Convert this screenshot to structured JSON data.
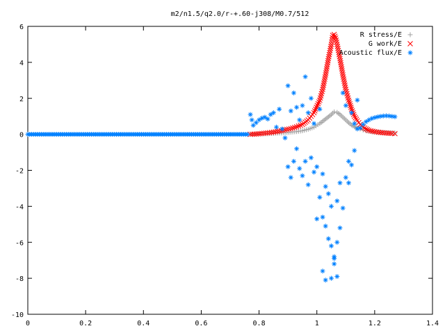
{
  "chart_data": {
    "type": "scatter",
    "title": "m2/n1.5/q2.0/r-+.60-j308/M0.7/512",
    "xlabel": "",
    "ylabel": "",
    "xlim": [
      0,
      1.4
    ],
    "ylim": [
      -10,
      6
    ],
    "x_ticks": [
      0,
      0.2,
      0.4,
      0.6,
      0.8,
      1,
      1.2,
      1.4
    ],
    "x_tick_labels": [
      "0",
      "0.2",
      "0.4",
      "0.6",
      "0.8",
      "1",
      "1.2",
      "1.4"
    ],
    "y_ticks": [
      -10,
      -8,
      -6,
      -4,
      -2,
      0,
      2,
      4,
      6
    ],
    "y_tick_labels": [
      "-10",
      "-8",
      "-6",
      "-4",
      "-2",
      "0",
      "2",
      "4",
      "6"
    ],
    "grid": false,
    "legend_position": "top-right",
    "series": [
      {
        "name": "R stress/E",
        "marker": "plus",
        "color": "#a0a0a0",
        "points": [
          [
            0.77,
            0.0
          ],
          [
            0.79,
            0.01
          ],
          [
            0.81,
            0.02
          ],
          [
            0.83,
            0.03
          ],
          [
            0.85,
            0.05
          ],
          [
            0.87,
            0.07
          ],
          [
            0.89,
            0.09
          ],
          [
            0.91,
            0.12
          ],
          [
            0.93,
            0.15
          ],
          [
            0.95,
            0.2
          ],
          [
            0.97,
            0.28
          ],
          [
            0.99,
            0.4
          ],
          [
            1.01,
            0.6
          ],
          [
            1.03,
            0.85
          ],
          [
            1.05,
            1.1
          ],
          [
            1.06,
            1.25
          ],
          [
            1.07,
            1.22
          ],
          [
            1.08,
            1.1
          ],
          [
            1.09,
            0.95
          ],
          [
            1.1,
            0.8
          ],
          [
            1.11,
            0.65
          ],
          [
            1.12,
            0.52
          ],
          [
            1.13,
            0.42
          ],
          [
            1.14,
            0.35
          ],
          [
            1.15,
            0.3
          ],
          [
            1.16,
            0.24
          ],
          [
            1.17,
            0.2
          ],
          [
            1.19,
            0.15
          ],
          [
            1.21,
            0.12
          ],
          [
            1.23,
            0.1
          ],
          [
            1.25,
            0.08
          ],
          [
            1.27,
            0.07
          ]
        ]
      },
      {
        "name": "G work/E",
        "marker": "cross",
        "color": "#ff0000",
        "points": [
          [
            0.77,
            0.0
          ],
          [
            0.79,
            0.02
          ],
          [
            0.81,
            0.05
          ],
          [
            0.83,
            0.08
          ],
          [
            0.85,
            0.12
          ],
          [
            0.87,
            0.18
          ],
          [
            0.89,
            0.25
          ],
          [
            0.91,
            0.32
          ],
          [
            0.93,
            0.42
          ],
          [
            0.95,
            0.55
          ],
          [
            0.97,
            0.8
          ],
          [
            0.99,
            1.2
          ],
          [
            1.01,
            1.9
          ],
          [
            1.02,
            2.5
          ],
          [
            1.03,
            3.3
          ],
          [
            1.04,
            4.2
          ],
          [
            1.05,
            5.0
          ],
          [
            1.055,
            5.5
          ],
          [
            1.06,
            5.55
          ],
          [
            1.065,
            5.35
          ],
          [
            1.07,
            5.0
          ],
          [
            1.08,
            4.2
          ],
          [
            1.09,
            3.3
          ],
          [
            1.1,
            2.5
          ],
          [
            1.11,
            1.9
          ],
          [
            1.12,
            1.4
          ],
          [
            1.13,
            1.0
          ],
          [
            1.14,
            0.75
          ],
          [
            1.15,
            0.55
          ],
          [
            1.16,
            0.4
          ],
          [
            1.17,
            0.3
          ],
          [
            1.18,
            0.22
          ],
          [
            1.2,
            0.15
          ],
          [
            1.22,
            0.1
          ],
          [
            1.24,
            0.07
          ],
          [
            1.26,
            0.05
          ],
          [
            1.27,
            0.04
          ]
        ]
      },
      {
        "name": "Acoustic flux/E",
        "marker": "star",
        "color": "#0080ff",
        "points": [
          [
            0.0,
            0.0
          ],
          [
            0.02,
            0.0
          ],
          [
            0.04,
            0.0
          ],
          [
            0.06,
            0.0
          ],
          [
            0.08,
            0.0
          ],
          [
            0.1,
            0.0
          ],
          [
            0.12,
            0.0
          ],
          [
            0.14,
            0.0
          ],
          [
            0.16,
            0.0
          ],
          [
            0.18,
            0.0
          ],
          [
            0.2,
            0.0
          ],
          [
            0.22,
            0.0
          ],
          [
            0.24,
            0.0
          ],
          [
            0.26,
            0.0
          ],
          [
            0.28,
            0.0
          ],
          [
            0.3,
            0.0
          ],
          [
            0.32,
            0.0
          ],
          [
            0.34,
            0.0
          ],
          [
            0.36,
            0.0
          ],
          [
            0.38,
            0.0
          ],
          [
            0.4,
            0.0
          ],
          [
            0.42,
            0.0
          ],
          [
            0.44,
            0.0
          ],
          [
            0.46,
            0.0
          ],
          [
            0.48,
            0.0
          ],
          [
            0.5,
            0.0
          ],
          [
            0.52,
            0.0
          ],
          [
            0.54,
            0.0
          ],
          [
            0.56,
            0.0
          ],
          [
            0.58,
            0.0
          ],
          [
            0.6,
            0.0
          ],
          [
            0.62,
            0.0
          ],
          [
            0.64,
            0.0
          ],
          [
            0.66,
            0.0
          ],
          [
            0.68,
            0.0
          ],
          [
            0.7,
            0.0
          ],
          [
            0.72,
            0.0
          ],
          [
            0.74,
            0.0
          ],
          [
            0.76,
            0.0
          ],
          [
            0.77,
            1.1
          ],
          [
            0.775,
            0.8
          ],
          [
            0.78,
            0.5
          ],
          [
            0.79,
            0.65
          ],
          [
            0.8,
            0.8
          ],
          [
            0.81,
            0.9
          ],
          [
            0.82,
            0.95
          ],
          [
            0.83,
            0.85
          ],
          [
            0.84,
            1.1
          ],
          [
            0.85,
            1.2
          ],
          [
            0.86,
            0.4
          ],
          [
            0.87,
            1.4
          ],
          [
            0.88,
            0.3
          ],
          [
            0.89,
            -0.2
          ],
          [
            0.9,
            2.7
          ],
          [
            0.9,
            -1.8
          ],
          [
            0.91,
            1.3
          ],
          [
            0.91,
            -2.4
          ],
          [
            0.92,
            2.3
          ],
          [
            0.92,
            -1.5
          ],
          [
            0.93,
            -0.8
          ],
          [
            0.93,
            1.5
          ],
          [
            0.94,
            -1.9
          ],
          [
            0.94,
            0.8
          ],
          [
            0.95,
            -2.3
          ],
          [
            0.95,
            1.6
          ],
          [
            0.96,
            -1.5
          ],
          [
            0.96,
            3.2
          ],
          [
            0.97,
            -2.8
          ],
          [
            0.97,
            1.2
          ],
          [
            0.98,
            -1.3
          ],
          [
            0.98,
            2.0
          ],
          [
            0.99,
            -2.1
          ],
          [
            0.99,
            0.6
          ],
          [
            1.0,
            -4.7
          ],
          [
            1.0,
            -1.8
          ],
          [
            1.01,
            -3.5
          ],
          [
            1.01,
            1.4
          ],
          [
            1.02,
            -2.2
          ],
          [
            1.02,
            -4.6
          ],
          [
            1.03,
            -5.1
          ],
          [
            1.03,
            -2.9
          ],
          [
            1.04,
            -5.8
          ],
          [
            1.04,
            -3.3
          ],
          [
            1.05,
            -6.2
          ],
          [
            1.05,
            -4.0
          ],
          [
            1.06,
            -6.8
          ],
          [
            1.06,
            -7.2
          ],
          [
            1.07,
            -6.0
          ],
          [
            1.07,
            -3.7
          ],
          [
            1.08,
            -5.2
          ],
          [
            1.08,
            -2.7
          ],
          [
            1.09,
            -4.1
          ],
          [
            1.09,
            2.3
          ],
          [
            1.1,
            -2.4
          ],
          [
            1.1,
            1.6
          ],
          [
            1.11,
            -1.5
          ],
          [
            1.11,
            -2.7
          ],
          [
            1.12,
            1.2
          ],
          [
            1.12,
            -1.7
          ],
          [
            1.13,
            0.6
          ],
          [
            1.13,
            -0.9
          ],
          [
            1.14,
            1.9
          ],
          [
            1.14,
            0.3
          ],
          [
            1.15,
            0.35
          ],
          [
            1.16,
            0.55
          ],
          [
            1.17,
            0.7
          ],
          [
            1.18,
            0.8
          ],
          [
            1.19,
            0.88
          ],
          [
            1.2,
            0.93
          ],
          [
            1.21,
            0.97
          ],
          [
            1.22,
            1.0
          ],
          [
            1.23,
            1.02
          ],
          [
            1.24,
            1.03
          ],
          [
            1.25,
            1.02
          ],
          [
            1.26,
            1.0
          ],
          [
            1.27,
            0.98
          ],
          [
            1.02,
            -7.6
          ],
          [
            1.03,
            -8.1
          ],
          [
            1.05,
            -8.0
          ],
          [
            1.07,
            -7.9
          ],
          [
            1.06,
            -6.9
          ]
        ]
      }
    ]
  }
}
